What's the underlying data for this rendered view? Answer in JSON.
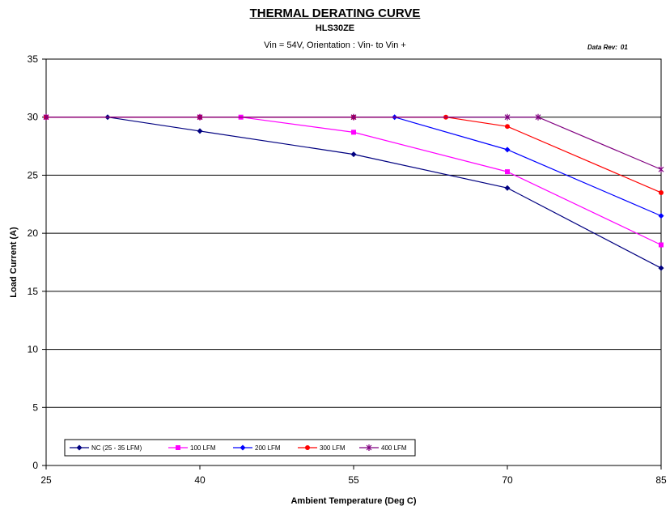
{
  "title": "THERMAL DERATING CURVE",
  "subtitle": "HLS30ZE",
  "conditions": "Vin = 54V, Orientation : Vin- to Vin +",
  "data_rev_label": "Data Rev:",
  "data_rev_value": "01",
  "chart_data": {
    "type": "line",
    "xlabel": "Ambient Temperature (Deg C)",
    "ylabel": "Load Current (A)",
    "xlim": [
      25,
      85
    ],
    "ylim": [
      0,
      35
    ],
    "xticks": [
      25,
      40,
      55,
      70,
      85
    ],
    "yticks": [
      0,
      5,
      10,
      15,
      20,
      25,
      30,
      35
    ],
    "grid": "horizontal",
    "legend_position": "bottom-left",
    "series": [
      {
        "name": "NC (25 - 35 LFM)",
        "color": "#000080",
        "marker": "diamond",
        "points": [
          [
            25,
            30
          ],
          [
            31,
            30
          ],
          [
            40,
            28.8
          ],
          [
            55,
            26.8
          ],
          [
            70,
            23.9
          ],
          [
            85,
            17
          ]
        ]
      },
      {
        "name": "100 LFM",
        "color": "#FF00FF",
        "marker": "square",
        "points": [
          [
            25,
            30
          ],
          [
            40,
            30
          ],
          [
            44,
            30
          ],
          [
            55,
            28.7
          ],
          [
            70,
            25.3
          ],
          [
            85,
            19
          ]
        ]
      },
      {
        "name": "200 LFM",
        "color": "#0000FF",
        "marker": "diamond",
        "points": [
          [
            25,
            30
          ],
          [
            40,
            30
          ],
          [
            55,
            30
          ],
          [
            59,
            30
          ],
          [
            70,
            27.2
          ],
          [
            85,
            21.5
          ]
        ]
      },
      {
        "name": "300 LFM",
        "color": "#FF0000",
        "marker": "circle",
        "points": [
          [
            25,
            30
          ],
          [
            40,
            30
          ],
          [
            55,
            30
          ],
          [
            64,
            30
          ],
          [
            70,
            29.2
          ],
          [
            85,
            23.5
          ]
        ]
      },
      {
        "name": "400 LFM",
        "color": "#800080",
        "marker": "star",
        "points": [
          [
            25,
            30
          ],
          [
            40,
            30
          ],
          [
            55,
            30
          ],
          [
            70,
            30
          ],
          [
            73,
            30
          ],
          [
            85,
            25.5
          ]
        ]
      }
    ]
  }
}
